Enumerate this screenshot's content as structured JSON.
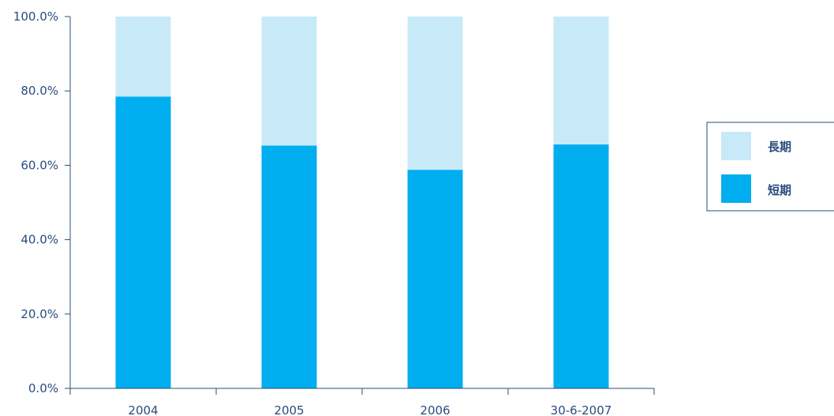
{
  "chart_data": {
    "type": "bar",
    "stacked": true,
    "categories": [
      "2004",
      "2005",
      "2006",
      "30-6-2007"
    ],
    "series": [
      {
        "name": "短期",
        "values": [
          78.5,
          65.3,
          58.8,
          65.6
        ],
        "color": "#00aeef"
      },
      {
        "name": "長期",
        "values": [
          21.5,
          34.7,
          41.2,
          34.4
        ],
        "color": "#c8e9f8"
      }
    ],
    "yticks": [
      "0.0%",
      "20.0%",
      "40.0%",
      "60.0%",
      "80.0%",
      "100.0%"
    ],
    "ylim": [
      0,
      100
    ],
    "legend": {
      "position": "right",
      "order": [
        "長期",
        "短期"
      ]
    },
    "grid": false,
    "axis_color": "#2b4c7e"
  }
}
